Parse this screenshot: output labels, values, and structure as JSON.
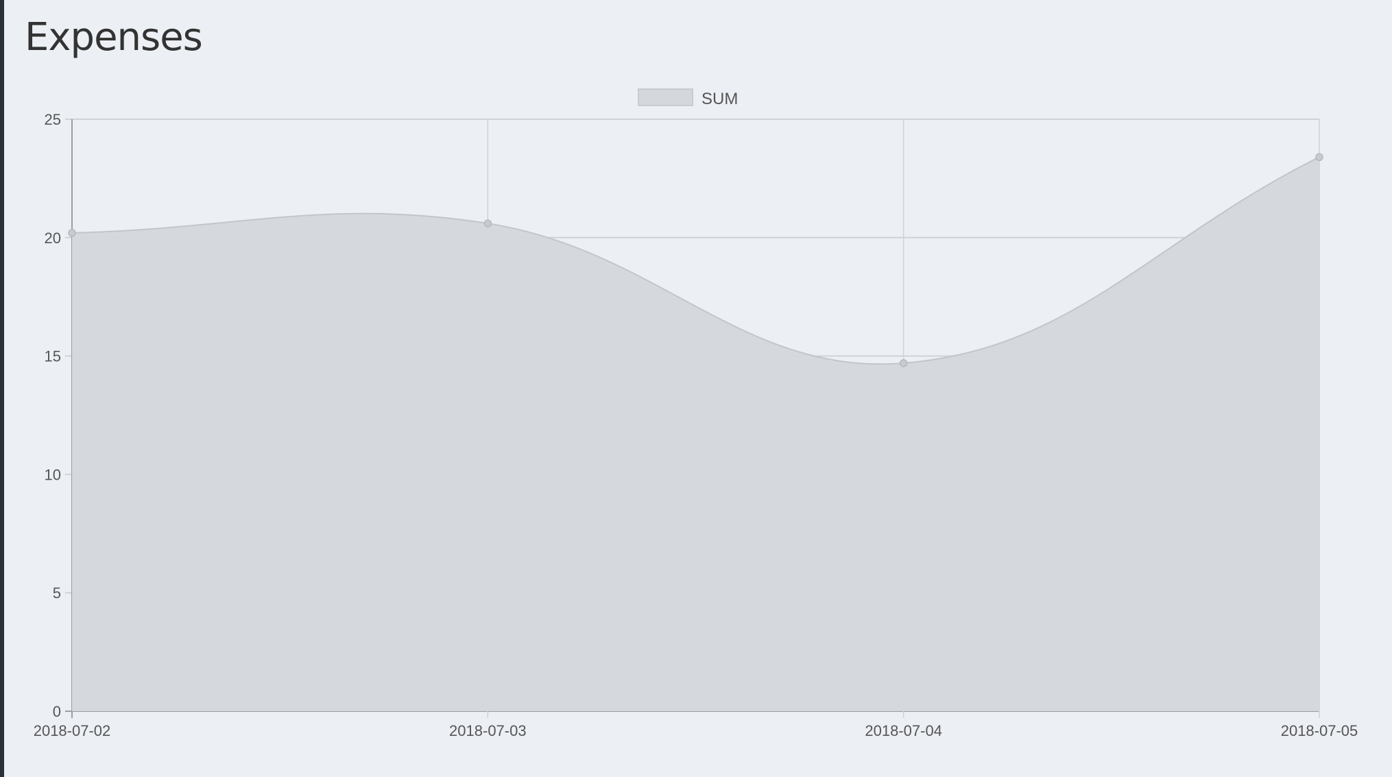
{
  "page": {
    "title": "Expenses"
  },
  "chart_data": {
    "type": "area",
    "title": "",
    "xlabel": "",
    "ylabel": "",
    "categories": [
      "2018-07-02",
      "2018-07-03",
      "2018-07-04",
      "2018-07-05"
    ],
    "series": [
      {
        "name": "SUM",
        "values": [
          20.2,
          20.6,
          14.7,
          23.4
        ],
        "fill": "#d4d7dc",
        "line": "#c2c5cb"
      }
    ],
    "ylim": [
      0,
      25
    ],
    "yticks": [
      0,
      5,
      10,
      15,
      20,
      25
    ],
    "grid": true,
    "smooth": true,
    "legend": "top-center"
  }
}
